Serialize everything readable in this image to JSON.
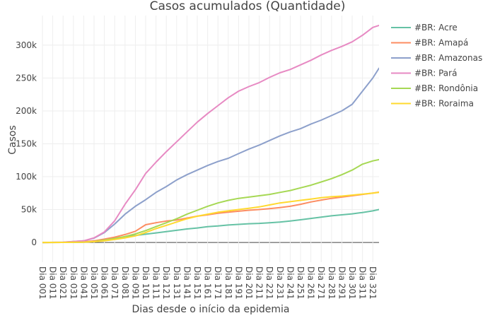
{
  "chart_data": {
    "type": "line",
    "title": "Casos acumulados (Quantidade)",
    "xlabel": "Dias desde o início da epidemia",
    "ylabel": "Casos",
    "xlim": [
      1,
      327
    ],
    "ylim": [
      -30000,
      345000
    ],
    "y_ticks": [
      0,
      50000,
      100000,
      150000,
      200000,
      250000,
      300000
    ],
    "y_tick_labels": [
      "0",
      "50k",
      "100k",
      "150k",
      "200k",
      "250k",
      "300k"
    ],
    "x_ticks": [
      1,
      11,
      21,
      31,
      41,
      51,
      61,
      71,
      81,
      91,
      101,
      111,
      121,
      131,
      141,
      151,
      161,
      171,
      181,
      191,
      201,
      211,
      221,
      231,
      241,
      251,
      261,
      271,
      281,
      291,
      301,
      311,
      321
    ],
    "x_tick_labels": [
      "Dia 001",
      "Dia 011",
      "Dia 021",
      "Dia 031",
      "Dia 041",
      "Dia 051",
      "Dia 061",
      "Dia 071",
      "Dia 081",
      "Dia 091",
      "Dia 101",
      "Dia 111",
      "Dia 121",
      "Dia 131",
      "Dia 141",
      "Dia 151",
      "Dia 161",
      "Dia 171",
      "Dia 181",
      "Dia 191",
      "Dia 201",
      "Dia 211",
      "Dia 221",
      "Dia 231",
      "Dia 241",
      "Dia 251",
      "Dia 261",
      "Dia 271",
      "Dia 281",
      "Dia 291",
      "Dia 301",
      "Dia 311",
      "Dia 321"
    ],
    "grid": true,
    "legend_position": "right",
    "x": [
      1,
      21,
      41,
      51,
      61,
      71,
      81,
      91,
      101,
      111,
      121,
      131,
      141,
      151,
      161,
      171,
      181,
      191,
      201,
      211,
      221,
      231,
      241,
      251,
      261,
      271,
      281,
      291,
      301,
      311,
      321,
      327
    ],
    "series": [
      {
        "name": "#BR: Acre",
        "color": "#66c2a5",
        "values": [
          0,
          100,
          500,
          1500,
          3500,
          6000,
          8500,
          10500,
          12500,
          14500,
          16500,
          18500,
          20500,
          22000,
          24000,
          25000,
          26500,
          27500,
          28500,
          29000,
          30000,
          31000,
          32500,
          34500,
          36500,
          38500,
          40500,
          42000,
          43500,
          45500,
          48000,
          50000
        ]
      },
      {
        "name": "#BR: Amapá",
        "color": "#fc8d62",
        "values": [
          0,
          100,
          1000,
          2500,
          5000,
          8000,
          12000,
          17000,
          27000,
          30000,
          32500,
          34000,
          37000,
          40000,
          42000,
          44500,
          46000,
          47500,
          49000,
          50000,
          51500,
          53000,
          55000,
          58000,
          61500,
          64500,
          67000,
          69000,
          71000,
          73000,
          75000,
          76500
        ]
      },
      {
        "name": "#BR: Amazonas",
        "color": "#8da0cb",
        "values": [
          0,
          300,
          2500,
          6500,
          15000,
          28000,
          43000,
          55000,
          65000,
          76000,
          85000,
          95000,
          103000,
          110000,
          117000,
          123000,
          128000,
          135000,
          142000,
          148000,
          155000,
          162000,
          168000,
          173000,
          180000,
          186000,
          193000,
          200000,
          210000,
          230000,
          250000,
          265000
        ]
      },
      {
        "name": "#BR: Pará",
        "color": "#e78ac3",
        "values": [
          0,
          300,
          2500,
          7000,
          16000,
          33000,
          58000,
          80000,
          105000,
          122000,
          138000,
          153000,
          168000,
          183000,
          196000,
          208000,
          220000,
          230000,
          237000,
          243000,
          251000,
          258000,
          263000,
          270000,
          277000,
          285000,
          292000,
          298000,
          305000,
          315000,
          327000,
          330000
        ]
      },
      {
        "name": "#BR: Rondônia",
        "color": "#a6d854",
        "values": [
          0,
          100,
          400,
          1500,
          3500,
          6000,
          9000,
          13000,
          18000,
          24000,
          30000,
          36000,
          43000,
          49000,
          55000,
          60000,
          64000,
          67000,
          69000,
          71000,
          73000,
          76000,
          79000,
          83000,
          87000,
          92000,
          97000,
          103000,
          110000,
          119000,
          124000,
          126000
        ]
      },
      {
        "name": "#BR: Roraima",
        "color": "#ffd92f",
        "values": [
          0,
          100,
          500,
          1200,
          2500,
          4500,
          7000,
          10000,
          15000,
          21000,
          26000,
          31000,
          36000,
          40000,
          43000,
          46000,
          48000,
          50000,
          52000,
          54000,
          57000,
          60000,
          62000,
          64000,
          66000,
          68000,
          69500,
          70500,
          72000,
          73500,
          75000,
          76000
        ]
      }
    ]
  }
}
